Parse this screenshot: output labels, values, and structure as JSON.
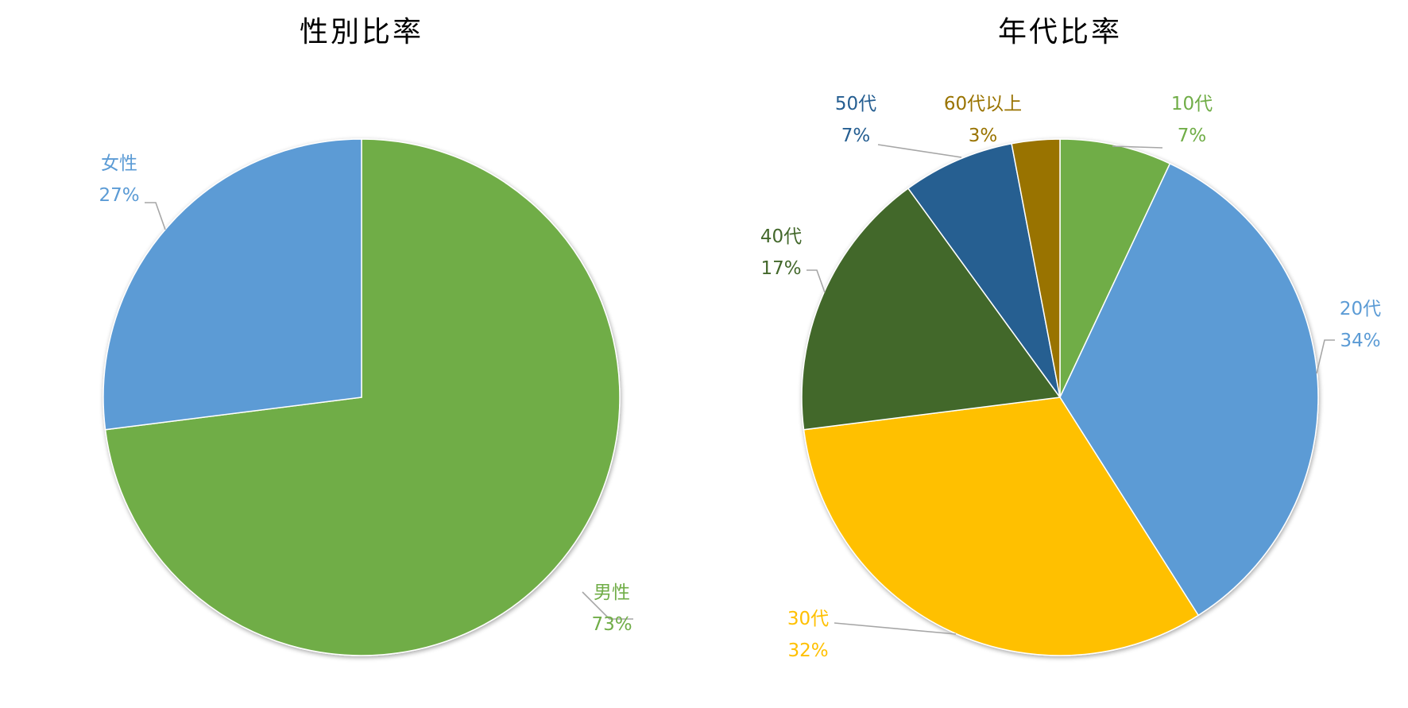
{
  "chart_data": [
    {
      "type": "pie",
      "title": "性別比率",
      "start_angle_deg": 0,
      "direction": "clockwise",
      "slices": [
        {
          "label": "男性",
          "value": 73,
          "percent_label": "73%",
          "color": "#70ad47"
        },
        {
          "label": "女性",
          "value": 27,
          "percent_label": "27%",
          "color": "#5b9bd5"
        }
      ]
    },
    {
      "type": "pie",
      "title": "年代比率",
      "start_angle_deg": 0,
      "direction": "clockwise",
      "slices": [
        {
          "label": "10代",
          "value": 7,
          "percent_label": "7%",
          "color": "#70ad47"
        },
        {
          "label": "20代",
          "value": 34,
          "percent_label": "34%",
          "color": "#5b9bd5"
        },
        {
          "label": "30代",
          "value": 32,
          "percent_label": "32%",
          "color": "#ffc000"
        },
        {
          "label": "40代",
          "value": 17,
          "percent_label": "17%",
          "color": "#43682b"
        },
        {
          "label": "50代",
          "value": 7,
          "percent_label": "7%",
          "color": "#255e91"
        },
        {
          "label": "60代以上",
          "value": 3,
          "percent_label": "3%",
          "color": "#997300"
        }
      ]
    }
  ]
}
